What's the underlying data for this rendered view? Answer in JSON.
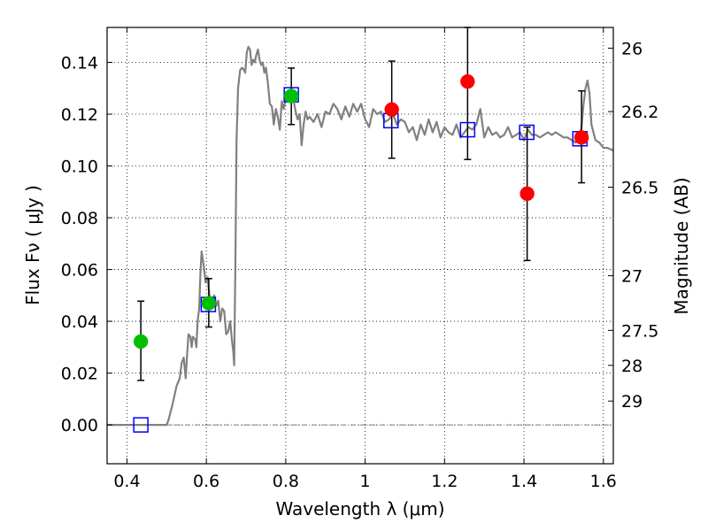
{
  "chart_data": {
    "type": "scatter",
    "xlabel": "Wavelength  λ (μm)",
    "ylabel": "Flux  Fν  ( μJy )",
    "ylabel_right": "Magnitude (AB)",
    "xlim": [
      0.35,
      1.625
    ],
    "ylim": [
      -0.015,
      0.1535
    ],
    "x_ticks": [
      0.4,
      0.6,
      0.8,
      1.0,
      1.2,
      1.4,
      1.6
    ],
    "x_tick_labels": [
      "0.4",
      "0.6",
      "0.8",
      "1",
      "1.2",
      "1.4",
      "1.6"
    ],
    "y_ticks": [
      0.0,
      0.02,
      0.04,
      0.06,
      0.08,
      0.1,
      0.12,
      0.14
    ],
    "y_tick_labels": [
      "0.00",
      "0.02",
      "0.04",
      "0.06",
      "0.08",
      "0.10",
      "0.12",
      "0.14"
    ],
    "right_ticks": [
      {
        "flux": 0.1455,
        "label": "26"
      },
      {
        "flux": 0.121,
        "label": "26.2"
      },
      {
        "flux": 0.0918,
        "label": "26.5"
      },
      {
        "flux": 0.0576,
        "label": "27"
      },
      {
        "flux": 0.0365,
        "label": "27.5"
      },
      {
        "flux": 0.023,
        "label": "28"
      },
      {
        "flux": 0.0092,
        "label": "29"
      }
    ],
    "grid": true,
    "zero_line": 0.0,
    "model_sed": {
      "color": "#808080",
      "x": [
        0.35,
        0.5,
        0.505,
        0.515,
        0.525,
        0.533,
        0.538,
        0.543,
        0.548,
        0.552,
        0.555,
        0.56,
        0.563,
        0.566,
        0.572,
        0.575,
        0.578,
        0.582,
        0.585,
        0.588,
        0.593,
        0.598,
        0.603,
        0.608,
        0.615,
        0.62,
        0.625,
        0.63,
        0.635,
        0.64,
        0.645,
        0.65,
        0.655,
        0.66,
        0.665,
        0.668,
        0.67,
        0.673,
        0.676,
        0.68,
        0.685,
        0.69,
        0.695,
        0.698,
        0.702,
        0.706,
        0.71,
        0.714,
        0.718,
        0.722,
        0.726,
        0.73,
        0.734,
        0.738,
        0.742,
        0.746,
        0.75,
        0.755,
        0.76,
        0.765,
        0.77,
        0.775,
        0.78,
        0.785,
        0.79,
        0.795,
        0.8,
        0.81,
        0.82,
        0.825,
        0.83,
        0.835,
        0.84,
        0.845,
        0.85,
        0.855,
        0.86,
        0.87,
        0.88,
        0.89,
        0.9,
        0.91,
        0.92,
        0.93,
        0.94,
        0.95,
        0.96,
        0.97,
        0.98,
        0.99,
        1.0,
        1.01,
        1.02,
        1.03,
        1.04,
        1.05,
        1.06,
        1.07,
        1.08,
        1.09,
        1.1,
        1.11,
        1.12,
        1.13,
        1.14,
        1.15,
        1.16,
        1.17,
        1.18,
        1.19,
        1.2,
        1.21,
        1.22,
        1.23,
        1.24,
        1.25,
        1.26,
        1.27,
        1.28,
        1.29,
        1.3,
        1.31,
        1.32,
        1.33,
        1.34,
        1.35,
        1.36,
        1.37,
        1.38,
        1.39,
        1.4,
        1.41,
        1.42,
        1.43,
        1.44,
        1.45,
        1.46,
        1.47,
        1.48,
        1.49,
        1.5,
        1.51,
        1.52,
        1.53,
        1.54,
        1.545,
        1.55,
        1.555,
        1.56,
        1.565,
        1.57,
        1.58,
        1.59,
        1.6,
        1.61,
        1.625
      ],
      "y": [
        0.0,
        0.0,
        0.002,
        0.008,
        0.015,
        0.018,
        0.024,
        0.026,
        0.018,
        0.028,
        0.035,
        0.034,
        0.03,
        0.034,
        0.033,
        0.03,
        0.04,
        0.045,
        0.058,
        0.067,
        0.062,
        0.055,
        0.057,
        0.05,
        0.048,
        0.05,
        0.046,
        0.048,
        0.04,
        0.045,
        0.044,
        0.035,
        0.036,
        0.04,
        0.032,
        0.028,
        0.023,
        0.06,
        0.11,
        0.13,
        0.137,
        0.138,
        0.137,
        0.136,
        0.144,
        0.146,
        0.145,
        0.139,
        0.141,
        0.14,
        0.143,
        0.145,
        0.141,
        0.139,
        0.14,
        0.136,
        0.138,
        0.132,
        0.124,
        0.123,
        0.116,
        0.122,
        0.119,
        0.114,
        0.125,
        0.122,
        0.126,
        0.128,
        0.125,
        0.121,
        0.118,
        0.12,
        0.108,
        0.116,
        0.121,
        0.118,
        0.119,
        0.117,
        0.12,
        0.115,
        0.121,
        0.12,
        0.124,
        0.122,
        0.118,
        0.123,
        0.119,
        0.124,
        0.121,
        0.124,
        0.118,
        0.115,
        0.122,
        0.12,
        0.121,
        0.117,
        0.118,
        0.12,
        0.116,
        0.118,
        0.117,
        0.113,
        0.115,
        0.11,
        0.116,
        0.112,
        0.118,
        0.113,
        0.117,
        0.111,
        0.115,
        0.113,
        0.112,
        0.116,
        0.111,
        0.113,
        0.115,
        0.114,
        0.116,
        0.122,
        0.111,
        0.115,
        0.112,
        0.113,
        0.111,
        0.112,
        0.115,
        0.111,
        0.112,
        0.113,
        0.11,
        0.114,
        0.112,
        0.112,
        0.111,
        0.112,
        0.113,
        0.112,
        0.113,
        0.112,
        0.111,
        0.111,
        0.11,
        0.109,
        0.111,
        0.115,
        0.124,
        0.13,
        0.133,
        0.128,
        0.116,
        0.11,
        0.109,
        0.107,
        0.107,
        0.106
      ]
    },
    "series": [
      {
        "marker": "square",
        "color": "#0000ff",
        "points": [
          {
            "x": 0.435,
            "y": 0.0
          },
          {
            "x": 0.605,
            "y": 0.0465
          },
          {
            "x": 0.814,
            "y": 0.1275
          },
          {
            "x": 1.065,
            "y": 0.1175
          },
          {
            "x": 1.258,
            "y": 0.114
          },
          {
            "x": 1.407,
            "y": 0.113
          },
          {
            "x": 1.541,
            "y": 0.1105
          }
        ]
      },
      {
        "marker": "circle",
        "color": "#00c000",
        "points": [
          {
            "x": 0.435,
            "y": 0.0322,
            "err_lo": 0.0172,
            "err_hi": 0.0478
          },
          {
            "x": 0.606,
            "y": 0.047,
            "err_lo": 0.0378,
            "err_hi": 0.0565
          },
          {
            "x": 0.814,
            "y": 0.127,
            "err_lo": 0.116,
            "err_hi": 0.1378
          }
        ]
      },
      {
        "marker": "circle",
        "color": "#ff0000",
        "points": [
          {
            "x": 1.067,
            "y": 0.1218,
            "err_lo": 0.103,
            "err_hi": 0.1405
          },
          {
            "x": 1.258,
            "y": 0.1326,
            "err_lo": 0.1025,
            "err_hi": 0.1535
          },
          {
            "x": 1.408,
            "y": 0.0893,
            "err_lo": 0.0635,
            "err_hi": 0.115
          },
          {
            "x": 1.545,
            "y": 0.111,
            "err_lo": 0.0935,
            "err_hi": 0.129
          }
        ]
      }
    ]
  }
}
